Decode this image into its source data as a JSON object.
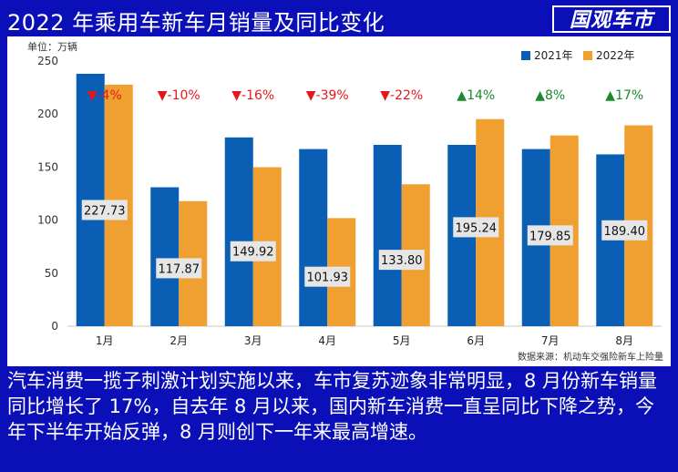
{
  "header": {
    "title": "2022 年乘用车新车月销量及同比变化",
    "logo_text": "国观车市"
  },
  "chart_data": {
    "type": "bar",
    "unit_label": "单位：万辆",
    "categories": [
      "1月",
      "2月",
      "3月",
      "4月",
      "5月",
      "6月",
      "7月",
      "8月"
    ],
    "series": [
      {
        "name": "2021年",
        "color": "#0a5fb4",
        "values": [
          238,
          131,
          178,
          167,
          171,
          171,
          167,
          162
        ]
      },
      {
        "name": "2022年",
        "color": "#f0a030",
        "values": [
          227.73,
          117.87,
          149.92,
          101.93,
          133.8,
          195.24,
          179.85,
          189.4
        ]
      }
    ],
    "data_labels": [
      "227.73",
      "117.87",
      "149.92",
      "101.93",
      "133.80",
      "195.24",
      "179.85",
      "189.40"
    ],
    "yoy_labels": [
      "▼-4%",
      "▼-10%",
      "▼-16%",
      "▼-39%",
      "▼-22%",
      "▲14%",
      "▲8%",
      "▲17%"
    ],
    "yoy_colors": [
      "#e8161b",
      "#e8161b",
      "#e8161b",
      "#e8161b",
      "#e8161b",
      "#1a8a2c",
      "#1a8a2c",
      "#1a8a2c"
    ],
    "ylim": [
      0,
      250
    ],
    "yticks": [
      0,
      50,
      100,
      150,
      200,
      250
    ],
    "grid": false,
    "legend_position": "top-right",
    "source": "数据来源：机动车交强险新车上险量"
  },
  "body_text": "汽车消费一揽子刺激计划实施以来，车市复苏迹象非常明显，8 月份新车销量同比增长了 17%，自去年 8 月以来，国内新车消费一直呈同比下降之势，今年下半年开始反弹，8 月则创下一年来最高增速。"
}
